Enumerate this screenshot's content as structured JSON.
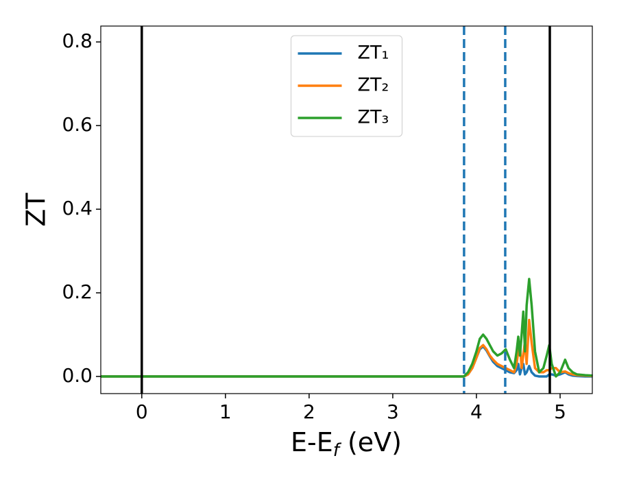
{
  "chart_data": {
    "type": "line",
    "x_label": [
      "E-E",
      "f",
      " (eV)"
    ],
    "y_label": "ZT",
    "x": [
      -0.49,
      3.85,
      3.9,
      3.95,
      4.0,
      4.04,
      4.08,
      4.12,
      4.16,
      4.2,
      4.25,
      4.3,
      4.35,
      4.4,
      4.45,
      4.48,
      4.5,
      4.52,
      4.54,
      4.56,
      4.58,
      4.6,
      4.63,
      4.66,
      4.7,
      4.75,
      4.8,
      4.84,
      4.87,
      4.9,
      4.95,
      5.0,
      5.06,
      5.1,
      5.15,
      5.2,
      5.3,
      5.39
    ],
    "series": [
      {
        "name": "ZT₁",
        "color": "#1f77b4",
        "values": [
          0,
          0,
          0.005,
          0.02,
          0.045,
          0.065,
          0.072,
          0.062,
          0.048,
          0.035,
          0.025,
          0.02,
          0.015,
          0.01,
          0.008,
          0.015,
          0.03,
          0.005,
          0.02,
          0.03,
          0.005,
          0.01,
          0.025,
          0.01,
          0.002,
          0,
          0,
          0,
          0.005,
          0.005,
          0.002,
          0.005,
          0.01,
          0.005,
          0.002,
          0.001,
          0,
          0
        ]
      },
      {
        "name": "ZT₂",
        "color": "#ff7f0e",
        "values": [
          0,
          0,
          0.005,
          0.02,
          0.045,
          0.068,
          0.075,
          0.065,
          0.05,
          0.04,
          0.03,
          0.025,
          0.02,
          0.015,
          0.01,
          0.03,
          0.06,
          0.08,
          0.02,
          0.05,
          0.085,
          0.03,
          0.135,
          0.08,
          0.02,
          0.01,
          0.01,
          0.015,
          0.015,
          0.02,
          0.02,
          0.01,
          0.012,
          0.008,
          0.005,
          0.003,
          0.002,
          0.001
        ]
      },
      {
        "name": "ZT₃",
        "color": "#2ca02c",
        "values": [
          0,
          0,
          0.01,
          0.03,
          0.06,
          0.09,
          0.1,
          0.09,
          0.075,
          0.06,
          0.05,
          0.055,
          0.065,
          0.04,
          0.02,
          0.06,
          0.095,
          0.05,
          0.1,
          0.155,
          0.06,
          0.17,
          0.233,
          0.17,
          0.06,
          0.01,
          0.02,
          0.05,
          0.075,
          0.03,
          0,
          0.01,
          0.04,
          0.02,
          0.01,
          0.005,
          0.003,
          0.002
        ]
      }
    ],
    "vlines": [
      {
        "x": 0,
        "color": "#000000",
        "style": "solid"
      },
      {
        "x": 4.877,
        "color": "#000000",
        "style": "solid"
      },
      {
        "x": 3.852,
        "color": "#1f77b4",
        "style": "dashed"
      },
      {
        "x": 4.344,
        "color": "#1f77b4",
        "style": "dashed"
      }
    ],
    "xlim": [
      -0.49,
      5.385
    ],
    "ylim": [
      -0.041,
      0.838
    ],
    "xticks": [
      0,
      1,
      2,
      3,
      4,
      5
    ],
    "yticks": [
      {
        "value": 0,
        "label": "0.0"
      },
      0.2,
      0.4,
      0.6,
      0.8
    ],
    "legend": "top-center"
  }
}
